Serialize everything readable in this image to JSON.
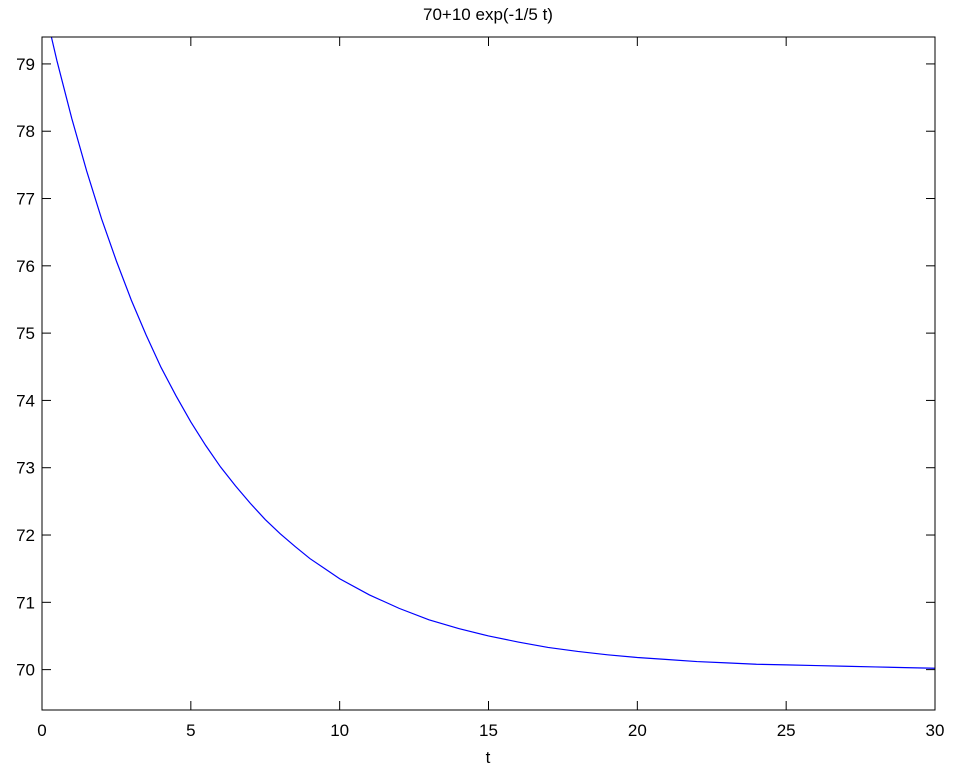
{
  "chart_data": {
    "type": "line",
    "title": "70+10 exp(-1/5 t)",
    "xlabel": "t",
    "ylabel": "",
    "xlim": [
      0,
      30
    ],
    "ylim": [
      69.4,
      79.4
    ],
    "xticks": [
      0,
      5,
      10,
      15,
      20,
      25,
      30
    ],
    "xtick_labels": [
      "0",
      "5",
      "10",
      "15",
      "20",
      "25",
      "30"
    ],
    "yticks": [
      70,
      71,
      72,
      73,
      74,
      75,
      76,
      77,
      78,
      79
    ],
    "ytick_labels": [
      "70",
      "71",
      "72",
      "73",
      "74",
      "75",
      "76",
      "77",
      "78",
      "79"
    ],
    "grid": false,
    "series": [
      {
        "color": "#0000ff",
        "x": [
          0,
          0.5,
          1,
          1.5,
          2,
          2.5,
          3,
          3.5,
          4,
          4.5,
          5,
          5.5,
          6,
          6.5,
          7,
          7.5,
          8,
          8.5,
          9,
          9.5,
          10,
          11,
          12,
          13,
          14,
          15,
          16,
          17,
          18,
          19,
          20,
          21,
          22,
          23,
          24,
          25,
          26,
          27,
          28,
          29,
          30
        ],
        "y": [
          80.0,
          79.05,
          78.19,
          77.41,
          76.7,
          76.07,
          75.49,
          74.97,
          74.49,
          74.07,
          73.68,
          73.33,
          73.01,
          72.73,
          72.47,
          72.23,
          72.02,
          71.83,
          71.65,
          71.5,
          71.35,
          71.11,
          70.91,
          70.74,
          70.61,
          70.5,
          70.41,
          70.33,
          70.27,
          70.22,
          70.18,
          70.15,
          70.12,
          70.1,
          70.08,
          70.07,
          70.06,
          70.05,
          70.04,
          70.03,
          70.02
        ]
      }
    ]
  }
}
